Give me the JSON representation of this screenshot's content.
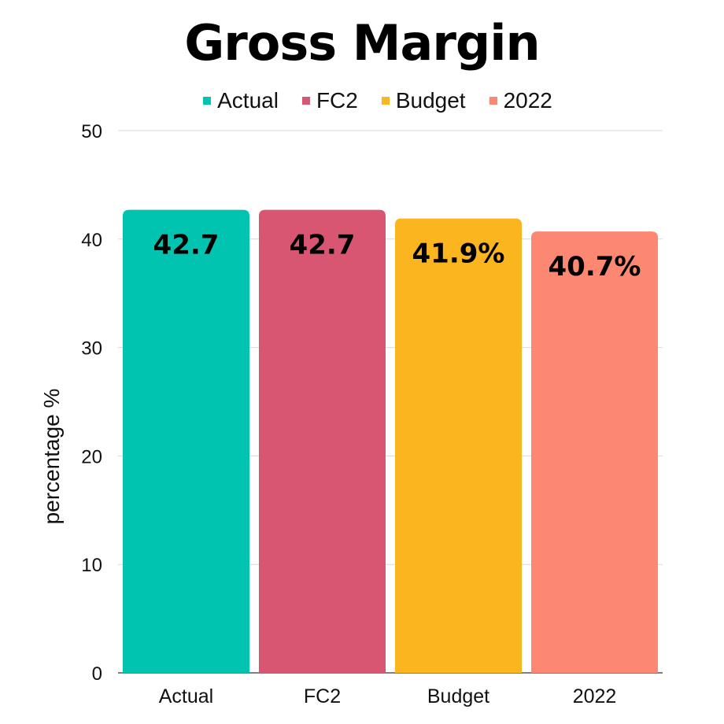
{
  "chart_data": {
    "type": "bar",
    "title": "Gross Margin",
    "categories": [
      "Actual",
      "FC2",
      "Budget",
      "2022"
    ],
    "values": [
      42.7,
      42.7,
      41.9,
      40.7
    ],
    "data_labels": [
      "42.7",
      "42.7",
      "41.9%",
      "40.7%"
    ],
    "colors": [
      "#00c4b0",
      "#d95672",
      "#fbb51f",
      "#fc8873"
    ],
    "legend": [
      "Actual",
      "FC2",
      "Budget",
      "2022"
    ],
    "legend_position": "top",
    "xlabel": "",
    "ylabel": "percentage %",
    "ylim": [
      0,
      50
    ],
    "yticks": [
      0,
      10,
      20,
      30,
      40,
      50
    ],
    "grid": true
  }
}
